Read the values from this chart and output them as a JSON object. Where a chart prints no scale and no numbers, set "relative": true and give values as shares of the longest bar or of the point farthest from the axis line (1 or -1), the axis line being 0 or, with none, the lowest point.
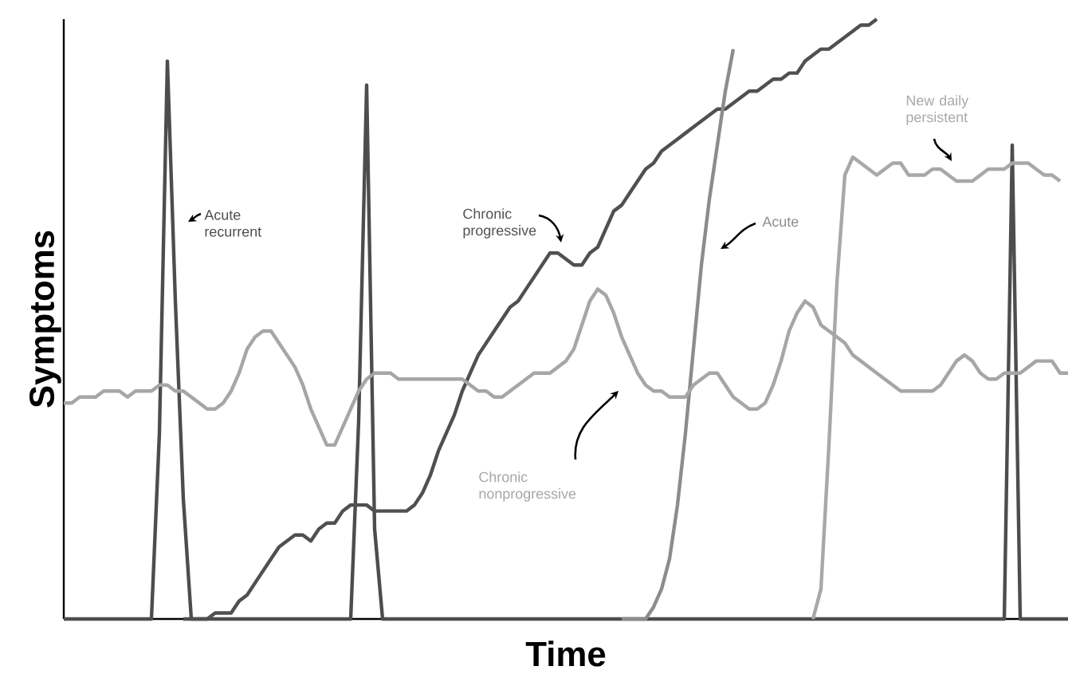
{
  "chart_data": {
    "type": "line",
    "relative": true,
    "xlabel": "Time",
    "ylabel": "Symptoms",
    "categories": [
      null,
      null,
      null,
      null,
      null,
      null,
      null,
      null,
      null,
      null,
      null,
      null,
      null,
      null,
      null,
      null,
      null,
      null,
      null,
      null,
      null,
      null,
      null,
      null,
      null,
      null,
      null,
      null,
      null,
      null,
      null,
      null,
      null,
      null,
      null,
      null,
      null,
      null,
      null,
      null,
      null,
      null,
      null,
      null,
      null,
      null,
      null,
      null,
      null,
      null,
      null,
      null,
      null,
      null,
      null,
      null,
      null,
      null,
      null,
      null,
      null,
      null,
      null,
      null,
      null,
      null,
      null,
      null,
      null,
      null,
      null,
      null,
      null,
      null,
      null,
      null,
      null,
      null,
      null,
      null,
      null,
      null,
      null,
      null,
      null,
      null,
      null,
      null,
      null,
      null,
      null,
      null,
      null,
      null,
      null,
      null,
      null,
      null,
      null,
      null,
      null,
      null,
      null,
      null,
      null,
      null,
      null,
      null,
      null,
      null,
      null,
      null,
      null,
      null,
      null,
      null,
      null,
      null,
      null,
      null,
      null,
      null,
      null,
      null,
      null,
      null,
      null
    ],
    "series": [
      {
        "name": "Acute recurrent",
        "color": "#4d4d4d",
        "values": [
          0,
          0,
          0,
          0,
          0,
          0,
          0,
          0,
          0,
          0,
          0,
          0,
          0.31,
          0.93,
          0.53,
          0.2,
          0,
          0,
          0,
          0,
          0,
          0,
          0,
          0,
          0,
          0,
          0,
          0,
          0,
          0,
          0,
          0,
          0,
          0,
          0,
          0,
          0,
          0.33,
          0.89,
          0.15,
          0,
          0,
          0,
          0,
          0,
          0,
          0,
          0,
          0,
          0,
          0,
          0,
          0,
          0,
          0,
          0,
          0,
          0,
          0,
          0,
          0,
          0,
          0,
          0,
          0,
          0,
          0,
          0,
          0,
          0,
          0,
          0,
          0,
          0,
          0,
          0,
          0,
          0,
          0,
          0,
          0,
          0,
          0,
          0,
          0,
          0,
          0,
          0,
          0,
          0,
          0,
          0,
          0,
          0,
          0,
          0,
          0,
          0,
          0,
          0,
          0,
          0,
          0,
          0,
          0,
          0,
          0,
          0,
          0,
          0,
          0,
          0,
          0,
          0,
          0,
          0,
          0,
          0,
          0,
          0.79,
          0,
          0,
          0,
          0,
          0,
          0,
          0
        ]
      },
      {
        "name": "Chronic progressive",
        "color": "#505050",
        "values": [
          null,
          null,
          null,
          null,
          null,
          null,
          null,
          null,
          null,
          null,
          null,
          null,
          null,
          null,
          null,
          0,
          0,
          0,
          0,
          0.01,
          0.01,
          0.01,
          0.03,
          0.04,
          0.06,
          0.08,
          0.1,
          0.12,
          0.13,
          0.14,
          0.14,
          0.13,
          0.15,
          0.16,
          0.16,
          0.18,
          0.19,
          0.19,
          0.19,
          0.18,
          0.18,
          0.18,
          0.18,
          0.18,
          0.19,
          0.21,
          0.24,
          0.28,
          0.31,
          0.34,
          0.38,
          0.41,
          0.44,
          0.46,
          0.48,
          0.5,
          0.52,
          0.53,
          0.55,
          0.57,
          0.59,
          0.61,
          0.61,
          0.6,
          0.59,
          0.59,
          0.61,
          0.62,
          0.65,
          0.68,
          0.69,
          0.71,
          0.73,
          0.75,
          0.76,
          0.78,
          0.79,
          0.8,
          0.81,
          0.82,
          0.83,
          0.84,
          0.85,
          0.85,
          0.86,
          0.87,
          0.88,
          0.88,
          0.89,
          0.9,
          0.9,
          0.91,
          0.91,
          0.93,
          0.94,
          0.95,
          0.95,
          0.96,
          0.97,
          0.98,
          0.99,
          0.99,
          1,
          null,
          null,
          null,
          null,
          null,
          null,
          null,
          null,
          null,
          null,
          null,
          null,
          null,
          null,
          null,
          null,
          null,
          null,
          null,
          null,
          null,
          null,
          null,
          null
        ]
      },
      {
        "name": "Acute",
        "color": "#8c8c8c",
        "values": [
          null,
          null,
          null,
          null,
          null,
          null,
          null,
          null,
          null,
          null,
          null,
          null,
          null,
          null,
          null,
          null,
          null,
          null,
          null,
          null,
          null,
          null,
          null,
          null,
          null,
          null,
          null,
          null,
          null,
          null,
          null,
          null,
          null,
          null,
          null,
          null,
          null,
          null,
          null,
          null,
          null,
          null,
          null,
          null,
          null,
          null,
          null,
          null,
          null,
          null,
          null,
          null,
          null,
          null,
          null,
          null,
          null,
          null,
          null,
          null,
          null,
          null,
          null,
          null,
          null,
          null,
          null,
          null,
          null,
          null,
          0,
          0,
          0,
          0,
          0.02,
          0.05,
          0.1,
          0.19,
          0.31,
          0.45,
          0.59,
          0.7,
          0.79,
          0.88,
          0.95,
          null,
          null,
          null,
          null,
          null,
          null,
          null,
          null,
          null,
          null,
          null,
          null,
          null,
          null,
          null,
          null,
          null,
          null,
          null,
          null,
          null,
          null,
          null,
          null,
          null,
          null,
          null,
          null,
          null,
          null,
          null,
          null,
          null,
          null,
          null,
          null,
          null,
          null,
          null,
          null,
          null,
          null
        ]
      },
      {
        "name": "New daily persistent",
        "color": "#a8a8a8",
        "values": [
          null,
          null,
          null,
          null,
          null,
          null,
          null,
          null,
          null,
          null,
          null,
          null,
          null,
          null,
          null,
          null,
          null,
          null,
          null,
          null,
          null,
          null,
          null,
          null,
          null,
          null,
          null,
          null,
          null,
          null,
          null,
          null,
          null,
          null,
          null,
          null,
          null,
          null,
          null,
          null,
          null,
          null,
          null,
          null,
          null,
          null,
          null,
          null,
          null,
          null,
          null,
          null,
          null,
          null,
          null,
          null,
          null,
          null,
          null,
          null,
          null,
          null,
          null,
          null,
          null,
          null,
          null,
          null,
          null,
          null,
          null,
          null,
          null,
          null,
          null,
          null,
          null,
          null,
          null,
          null,
          null,
          null,
          null,
          null,
          null,
          null,
          null,
          null,
          null,
          null,
          null,
          null,
          null,
          null,
          0,
          0.05,
          0.29,
          0.56,
          0.74,
          0.77,
          0.76,
          0.75,
          0.74,
          0.75,
          0.76,
          0.76,
          0.74,
          0.74,
          0.74,
          0.75,
          0.75,
          0.74,
          0.73,
          0.73,
          0.73,
          0.74,
          0.75,
          0.75,
          0.75,
          0.76,
          0.76,
          0.76,
          0.75,
          0.74,
          0.74,
          0.73,
          null
        ]
      },
      {
        "name": "Chronic nonprogressive",
        "color": "#a6a6a6",
        "values": [
          0.36,
          0.36,
          0.37,
          0.37,
          0.37,
          0.38,
          0.38,
          0.38,
          0.37,
          0.38,
          0.38,
          0.38,
          0.39,
          0.39,
          0.38,
          0.38,
          0.37,
          0.36,
          0.35,
          0.35,
          0.36,
          0.38,
          0.41,
          0.45,
          0.47,
          0.48,
          0.48,
          0.46,
          0.44,
          0.42,
          0.39,
          0.35,
          0.32,
          0.29,
          0.29,
          0.32,
          0.35,
          0.38,
          0.4,
          0.41,
          0.41,
          0.41,
          0.4,
          0.4,
          0.4,
          0.4,
          0.4,
          0.4,
          0.4,
          0.4,
          0.4,
          0.39,
          0.38,
          0.38,
          0.37,
          0.37,
          0.38,
          0.39,
          0.4,
          0.41,
          0.41,
          0.41,
          0.42,
          0.43,
          0.45,
          0.49,
          0.53,
          0.55,
          0.54,
          0.51,
          0.47,
          0.44,
          0.41,
          0.39,
          0.38,
          0.38,
          0.37,
          0.37,
          0.37,
          0.39,
          0.4,
          0.41,
          0.41,
          0.39,
          0.37,
          0.36,
          0.35,
          0.35,
          0.36,
          0.39,
          0.43,
          0.48,
          0.51,
          0.53,
          0.52,
          0.49,
          0.48,
          0.47,
          0.46,
          0.44,
          0.43,
          0.42,
          0.41,
          0.4,
          0.39,
          0.38,
          0.38,
          0.38,
          0.38,
          0.38,
          0.39,
          0.41,
          0.43,
          0.44,
          0.43,
          0.41,
          0.4,
          0.4,
          0.41,
          0.41,
          0.41,
          0.42,
          0.43,
          0.43,
          0.43,
          0.41,
          0.41
        ]
      }
    ]
  }
}
